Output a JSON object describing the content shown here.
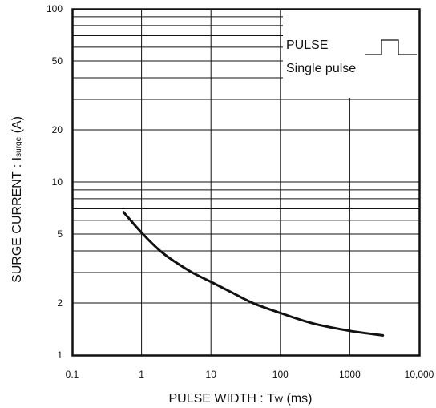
{
  "chart_data": {
    "type": "line",
    "x_scale": "log",
    "y_scale": "log",
    "xlim": [
      0.1,
      10000
    ],
    "ylim": [
      1,
      100
    ],
    "grid": true,
    "xlabel_main": "PULSE WIDTH : T",
    "xlabel_sub": "W",
    "xlabel_unit": " (ms)",
    "ylabel_main": "SURGE CURRENT : I",
    "ylabel_sub": "surge",
    "ylabel_unit": " (A)",
    "x_ticks": [
      {
        "value": 0.1,
        "label": "0.1"
      },
      {
        "value": 1,
        "label": "1"
      },
      {
        "value": 10,
        "label": "10"
      },
      {
        "value": 100,
        "label": "100"
      },
      {
        "value": 1000,
        "label": "1000"
      },
      {
        "value": 10000,
        "label": "10,000"
      }
    ],
    "y_ticks": [
      {
        "value": 1,
        "label": "1"
      },
      {
        "value": 2,
        "label": "2"
      },
      {
        "value": 5,
        "label": "5"
      },
      {
        "value": 10,
        "label": "10"
      },
      {
        "value": 20,
        "label": "20"
      },
      {
        "value": 50,
        "label": "50"
      },
      {
        "value": 100,
        "label": "100"
      }
    ],
    "annotation": {
      "title": "PULSE",
      "subtitle": "Single pulse"
    },
    "series": [
      {
        "x": [
          0.55,
          1,
          2,
          5,
          10,
          20,
          40,
          100,
          300,
          1000,
          3000
        ],
        "y": [
          6.7,
          5.1,
          3.9,
          3.05,
          2.65,
          2.3,
          2.0,
          1.75,
          1.52,
          1.38,
          1.3
        ]
      }
    ],
    "colors": {
      "line": "#111111",
      "grid": "#111111",
      "frame": "#111111"
    }
  }
}
